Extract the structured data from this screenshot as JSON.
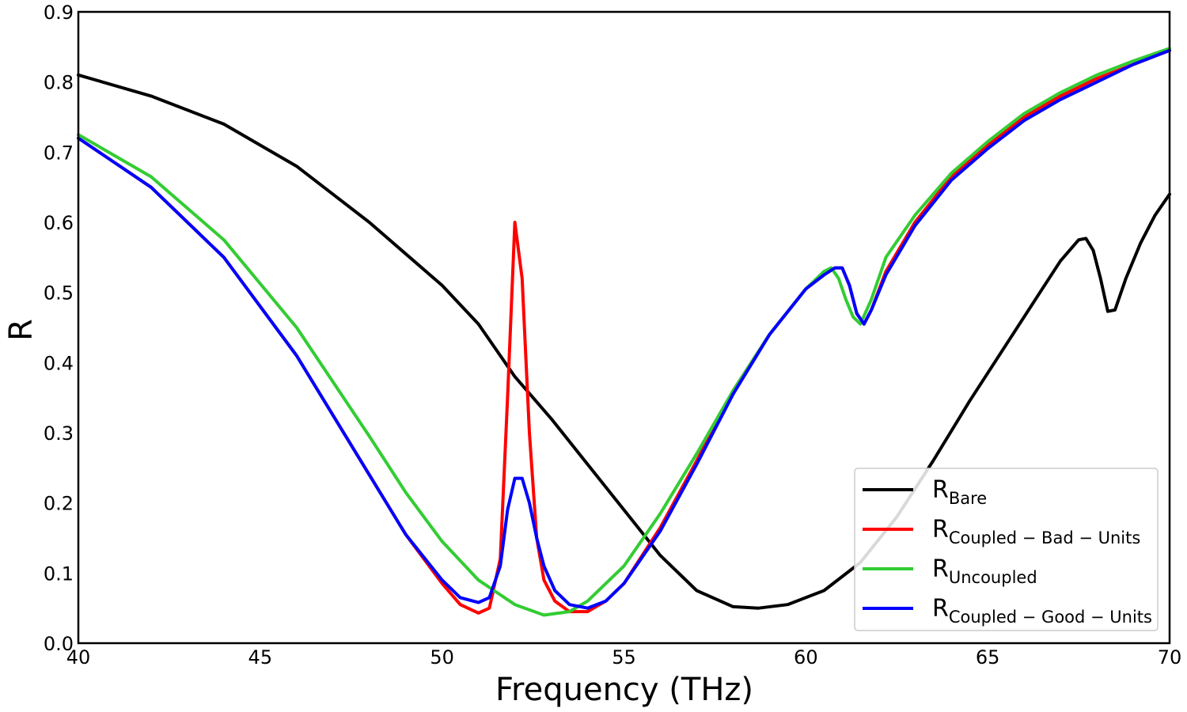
{
  "chart_data": {
    "type": "line",
    "xlabel": "Frequency (THz)",
    "ylabel": "R",
    "xlim": [
      40,
      70
    ],
    "ylim": [
      0.0,
      0.9
    ],
    "xticks": [
      "40",
      "45",
      "50",
      "55",
      "60",
      "65",
      "70"
    ],
    "yticks": [
      "0.0",
      "0.1",
      "0.2",
      "0.3",
      "0.4",
      "0.5",
      "0.6",
      "0.7",
      "0.8",
      "0.9"
    ],
    "grid": false,
    "legend_position": "lower-right",
    "series": [
      {
        "name": "R",
        "subscript": "Bare",
        "color": "#000000",
        "points": [
          [
            40,
            0.81
          ],
          [
            42,
            0.78
          ],
          [
            44,
            0.74
          ],
          [
            46,
            0.68
          ],
          [
            48,
            0.6
          ],
          [
            50,
            0.51
          ],
          [
            51,
            0.455
          ],
          [
            52,
            0.38
          ],
          [
            53,
            0.32
          ],
          [
            54,
            0.255
          ],
          [
            55,
            0.19
          ],
          [
            56,
            0.125
          ],
          [
            57,
            0.075
          ],
          [
            58,
            0.052
          ],
          [
            58.7,
            0.05
          ],
          [
            59.5,
            0.055
          ],
          [
            60.5,
            0.075
          ],
          [
            61.5,
            0.115
          ],
          [
            62.5,
            0.18
          ],
          [
            63.5,
            0.26
          ],
          [
            64.5,
            0.345
          ],
          [
            65.5,
            0.425
          ],
          [
            66.5,
            0.505
          ],
          [
            67.0,
            0.545
          ],
          [
            67.5,
            0.575
          ],
          [
            67.7,
            0.577
          ],
          [
            67.9,
            0.56
          ],
          [
            68.1,
            0.52
          ],
          [
            68.3,
            0.473
          ],
          [
            68.5,
            0.475
          ],
          [
            68.8,
            0.52
          ],
          [
            69.2,
            0.57
          ],
          [
            69.6,
            0.61
          ],
          [
            70,
            0.64
          ]
        ]
      },
      {
        "name": "R",
        "subscript": "Coupled − Bad − Units",
        "color": "#ff0000",
        "points": [
          [
            40,
            0.72
          ],
          [
            42,
            0.65
          ],
          [
            44,
            0.55
          ],
          [
            46,
            0.41
          ],
          [
            48,
            0.24
          ],
          [
            49,
            0.155
          ],
          [
            50,
            0.085
          ],
          [
            50.5,
            0.055
          ],
          [
            51,
            0.043
          ],
          [
            51.3,
            0.05
          ],
          [
            51.6,
            0.12
          ],
          [
            51.8,
            0.35
          ],
          [
            52.0,
            0.6
          ],
          [
            52.2,
            0.52
          ],
          [
            52.4,
            0.3
          ],
          [
            52.6,
            0.15
          ],
          [
            52.8,
            0.09
          ],
          [
            53.1,
            0.06
          ],
          [
            53.5,
            0.045
          ],
          [
            54,
            0.045
          ],
          [
            54.5,
            0.06
          ],
          [
            55,
            0.085
          ],
          [
            56,
            0.165
          ],
          [
            57,
            0.26
          ],
          [
            58,
            0.36
          ],
          [
            59,
            0.44
          ],
          [
            60,
            0.505
          ],
          [
            60.5,
            0.525
          ],
          [
            60.8,
            0.535
          ],
          [
            61.0,
            0.535
          ],
          [
            61.2,
            0.51
          ],
          [
            61.4,
            0.47
          ],
          [
            61.6,
            0.455
          ],
          [
            61.8,
            0.475
          ],
          [
            62.2,
            0.53
          ],
          [
            63,
            0.6
          ],
          [
            64,
            0.665
          ],
          [
            65,
            0.71
          ],
          [
            66,
            0.75
          ],
          [
            67,
            0.78
          ],
          [
            68,
            0.805
          ],
          [
            69,
            0.825
          ],
          [
            70,
            0.845
          ]
        ]
      },
      {
        "name": "R",
        "subscript": "Uncoupled",
        "color": "#33cc33",
        "points": [
          [
            40,
            0.725
          ],
          [
            42,
            0.665
          ],
          [
            44,
            0.575
          ],
          [
            46,
            0.45
          ],
          [
            48,
            0.295
          ],
          [
            49,
            0.215
          ],
          [
            50,
            0.145
          ],
          [
            51,
            0.09
          ],
          [
            52,
            0.055
          ],
          [
            52.8,
            0.04
          ],
          [
            53.5,
            0.045
          ],
          [
            54,
            0.06
          ],
          [
            55,
            0.11
          ],
          [
            56,
            0.185
          ],
          [
            57,
            0.27
          ],
          [
            58,
            0.36
          ],
          [
            59,
            0.44
          ],
          [
            60,
            0.505
          ],
          [
            60.5,
            0.53
          ],
          [
            60.7,
            0.535
          ],
          [
            60.9,
            0.52
          ],
          [
            61.1,
            0.49
          ],
          [
            61.3,
            0.465
          ],
          [
            61.5,
            0.455
          ],
          [
            61.8,
            0.49
          ],
          [
            62.2,
            0.55
          ],
          [
            63,
            0.61
          ],
          [
            64,
            0.67
          ],
          [
            65,
            0.715
          ],
          [
            66,
            0.755
          ],
          [
            67,
            0.785
          ],
          [
            68,
            0.81
          ],
          [
            69,
            0.83
          ],
          [
            70,
            0.848
          ]
        ]
      },
      {
        "name": "R",
        "subscript": "Coupled − Good − Units",
        "color": "#0000ff",
        "points": [
          [
            40,
            0.72
          ],
          [
            42,
            0.65
          ],
          [
            44,
            0.55
          ],
          [
            46,
            0.41
          ],
          [
            48,
            0.24
          ],
          [
            49,
            0.155
          ],
          [
            50,
            0.09
          ],
          [
            50.5,
            0.065
          ],
          [
            51,
            0.058
          ],
          [
            51.3,
            0.065
          ],
          [
            51.6,
            0.11
          ],
          [
            51.8,
            0.19
          ],
          [
            52.0,
            0.235
          ],
          [
            52.2,
            0.235
          ],
          [
            52.4,
            0.2
          ],
          [
            52.6,
            0.15
          ],
          [
            52.8,
            0.11
          ],
          [
            53.1,
            0.075
          ],
          [
            53.5,
            0.055
          ],
          [
            54,
            0.05
          ],
          [
            54.5,
            0.06
          ],
          [
            55,
            0.085
          ],
          [
            56,
            0.16
          ],
          [
            57,
            0.255
          ],
          [
            58,
            0.355
          ],
          [
            59,
            0.44
          ],
          [
            60,
            0.505
          ],
          [
            60.5,
            0.525
          ],
          [
            60.8,
            0.535
          ],
          [
            61.0,
            0.535
          ],
          [
            61.2,
            0.51
          ],
          [
            61.4,
            0.47
          ],
          [
            61.6,
            0.455
          ],
          [
            61.8,
            0.475
          ],
          [
            62.2,
            0.525
          ],
          [
            63,
            0.595
          ],
          [
            64,
            0.66
          ],
          [
            65,
            0.705
          ],
          [
            66,
            0.745
          ],
          [
            67,
            0.775
          ],
          [
            68,
            0.8
          ],
          [
            69,
            0.825
          ],
          [
            70,
            0.845
          ]
        ]
      }
    ]
  }
}
